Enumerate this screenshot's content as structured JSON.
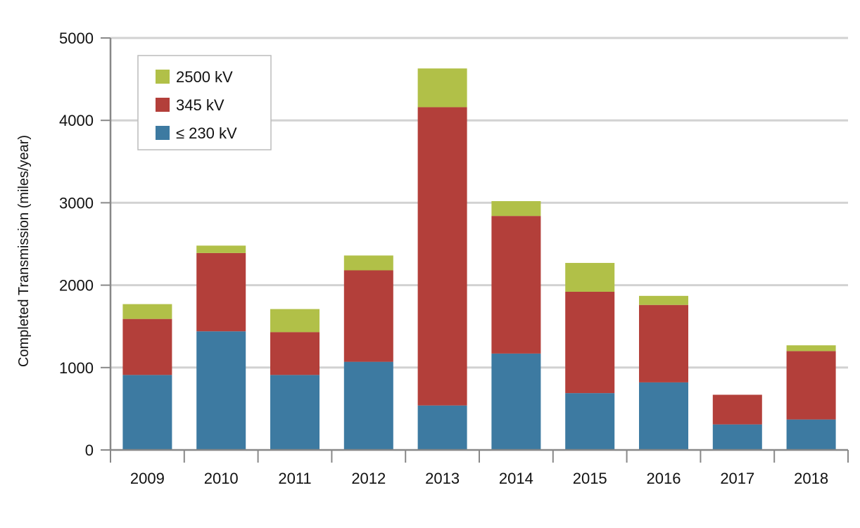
{
  "chart_data": {
    "type": "bar",
    "stacked": true,
    "title": "",
    "xlabel": "",
    "ylabel": "Completed Transmission (miles/year)",
    "ylim": [
      0,
      5000
    ],
    "yticks": [
      0,
      1000,
      2000,
      3000,
      4000,
      5000
    ],
    "grid": true,
    "legend_position": "top-left",
    "categories": [
      "2009",
      "2010",
      "2011",
      "2012",
      "2013",
      "2014",
      "2015",
      "2016",
      "2017",
      "2018"
    ],
    "series": [
      {
        "name": "≤ 230 kV",
        "color": "#3d7aa1",
        "values": [
          910,
          1440,
          910,
          1070,
          540,
          1170,
          690,
          820,
          310,
          370
        ]
      },
      {
        "name": "345 kV",
        "color": "#b33f3a",
        "values": [
          680,
          950,
          520,
          1110,
          3620,
          1670,
          1230,
          940,
          360,
          830
        ]
      },
      {
        "name": "2500 kV",
        "color": "#b1c048",
        "values": [
          180,
          90,
          280,
          180,
          470,
          180,
          350,
          110,
          0,
          70
        ]
      }
    ],
    "legend_order": [
      "2500 kV",
      "345 kV",
      "≤ 230 kV"
    ]
  }
}
